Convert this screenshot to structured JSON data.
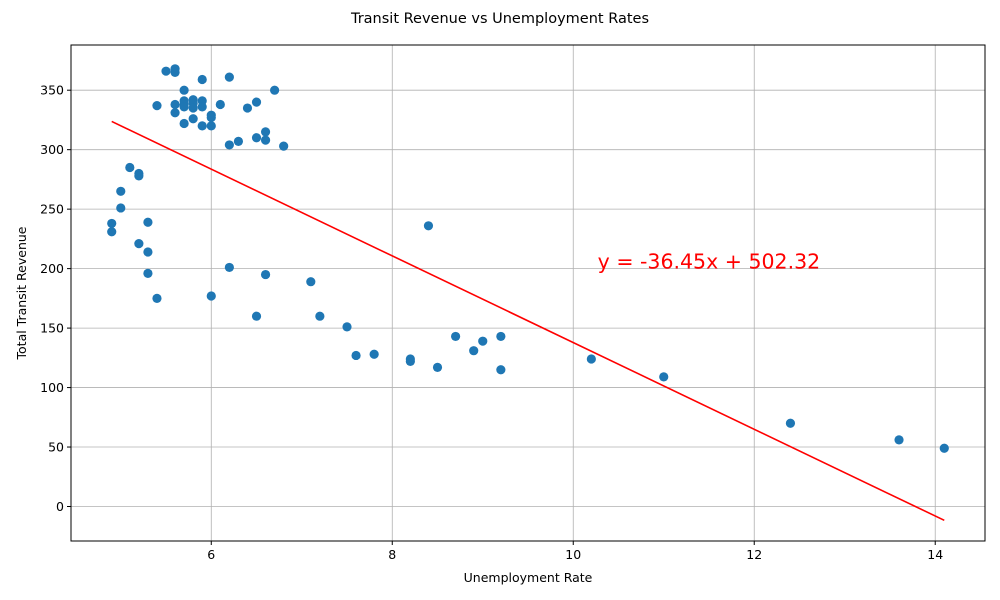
{
  "chart_data": {
    "type": "scatter",
    "title": "Transit Revenue vs Unemployment Rates",
    "xlabel": "Unemployment Rate",
    "ylabel": "Total Transit Revenue",
    "xlim": [
      4.45,
      14.55
    ],
    "ylim": [
      -29,
      388
    ],
    "xticks": [
      6,
      8,
      10,
      12,
      14
    ],
    "yticks": [
      0,
      50,
      100,
      150,
      200,
      250,
      300,
      350
    ],
    "grid": true,
    "annotation": {
      "text": "y = -36.45x + 502.32",
      "x": 10.27,
      "y": 200,
      "color": "#ff0000"
    },
    "trendline": {
      "slope": -36.45,
      "intercept": 502.32,
      "x_start": 4.9,
      "x_end": 14.1,
      "color": "#ff0000"
    },
    "colors": {
      "points": "#1f77b4",
      "trendline": "#ff0000"
    },
    "points": [
      [
        4.9,
        238
      ],
      [
        4.9,
        231
      ],
      [
        5.0,
        265
      ],
      [
        5.0,
        251
      ],
      [
        5.1,
        285
      ],
      [
        5.2,
        280
      ],
      [
        5.2,
        278
      ],
      [
        5.2,
        221
      ],
      [
        5.3,
        239
      ],
      [
        5.3,
        214
      ],
      [
        5.3,
        196
      ],
      [
        5.4,
        337
      ],
      [
        5.4,
        175
      ],
      [
        5.5,
        366
      ],
      [
        5.6,
        368
      ],
      [
        5.6,
        365
      ],
      [
        5.6,
        338
      ],
      [
        5.6,
        331
      ],
      [
        5.7,
        350
      ],
      [
        5.7,
        341
      ],
      [
        5.7,
        338
      ],
      [
        5.7,
        336
      ],
      [
        5.7,
        322
      ],
      [
        5.8,
        342
      ],
      [
        5.8,
        339
      ],
      [
        5.8,
        335
      ],
      [
        5.8,
        326
      ],
      [
        5.9,
        359
      ],
      [
        5.9,
        341
      ],
      [
        5.9,
        336
      ],
      [
        5.9,
        320
      ],
      [
        6.0,
        329
      ],
      [
        6.0,
        327
      ],
      [
        6.0,
        320
      ],
      [
        6.0,
        177
      ],
      [
        6.1,
        338
      ],
      [
        6.2,
        361
      ],
      [
        6.2,
        304
      ],
      [
        6.2,
        201
      ],
      [
        6.3,
        307
      ],
      [
        6.4,
        335
      ],
      [
        6.5,
        340
      ],
      [
        6.5,
        310
      ],
      [
        6.5,
        160
      ],
      [
        6.6,
        315
      ],
      [
        6.6,
        308
      ],
      [
        6.6,
        195
      ],
      [
        6.7,
        350
      ],
      [
        6.8,
        303
      ],
      [
        7.1,
        189
      ],
      [
        7.2,
        160
      ],
      [
        7.5,
        151
      ],
      [
        7.6,
        127
      ],
      [
        7.8,
        128
      ],
      [
        8.2,
        124
      ],
      [
        8.2,
        122
      ],
      [
        8.4,
        236
      ],
      [
        8.5,
        117
      ],
      [
        8.7,
        143
      ],
      [
        8.9,
        131
      ],
      [
        9.0,
        139
      ],
      [
        9.2,
        143
      ],
      [
        9.2,
        115
      ],
      [
        10.2,
        124
      ],
      [
        11.0,
        109
      ],
      [
        12.4,
        70
      ],
      [
        13.6,
        56
      ],
      [
        14.1,
        49
      ]
    ]
  }
}
